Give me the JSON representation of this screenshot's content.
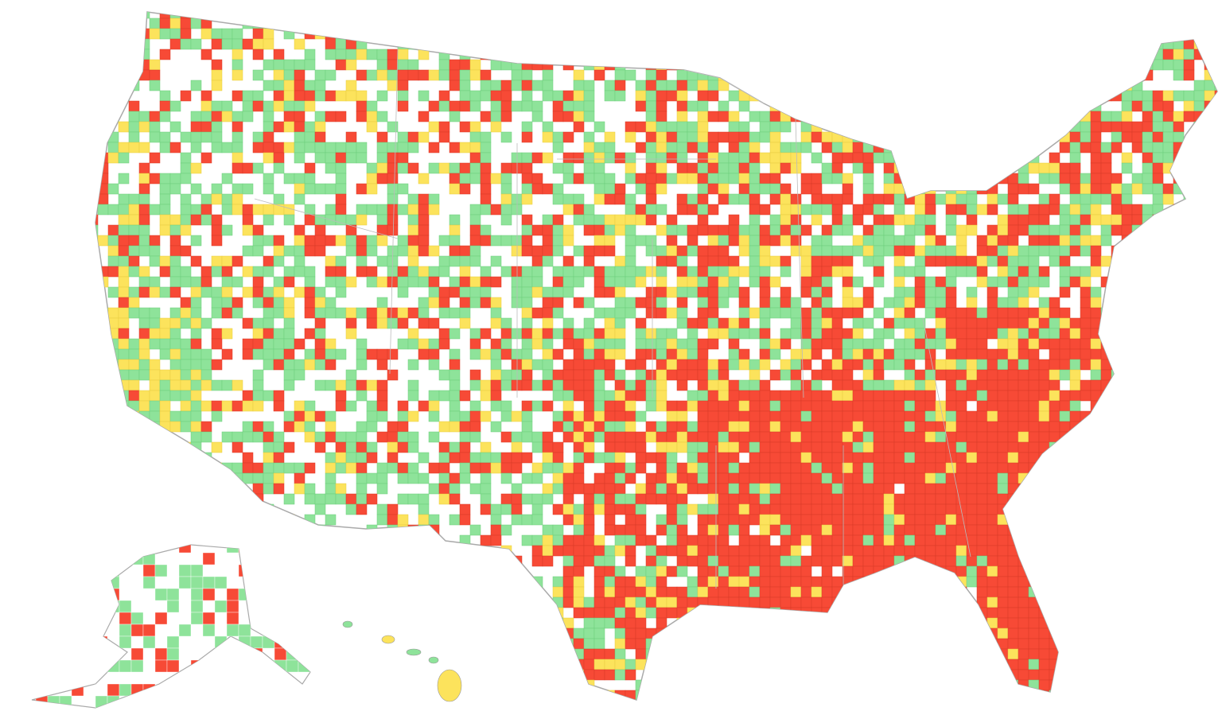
{
  "map": {
    "colors": [
      "#ffffff",
      "#8ee39a",
      "#fce35c",
      "#f74a36"
    ]
  }
}
